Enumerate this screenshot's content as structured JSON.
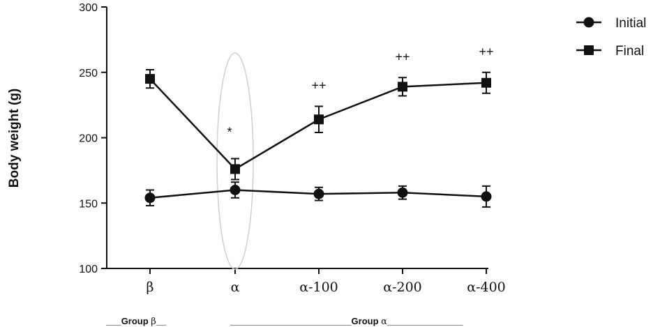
{
  "chart_data": {
    "type": "line",
    "xlabel": "",
    "ylabel": "Body weight (g)",
    "ylim": [
      100,
      300
    ],
    "y_ticks": [
      100,
      150,
      200,
      250,
      300
    ],
    "categories": [
      "β",
      "α",
      "α-100",
      "α-200",
      "α-400"
    ],
    "legend_position": "top-right",
    "grid": false,
    "series": [
      {
        "name": "Initial",
        "marker": "circle",
        "values": [
          154,
          160,
          157,
          158,
          155
        ],
        "errors": [
          6,
          6,
          5,
          5,
          8
        ]
      },
      {
        "name": "Final",
        "marker": "square",
        "values": [
          245,
          176,
          214,
          239,
          242
        ],
        "errors": [
          7,
          8,
          10,
          7,
          8
        ]
      }
    ],
    "annotations": [
      {
        "category": "α",
        "text": "*"
      },
      {
        "category": "α-100",
        "text": "++"
      },
      {
        "category": "α-200",
        "text": "++"
      },
      {
        "category": "α-400",
        "text": "++"
      }
    ],
    "highlighted_category": "α",
    "groups": [
      {
        "prefix": "___Group ",
        "greek": "β",
        "suffix": "__"
      },
      {
        "prefix": "________________________Group ",
        "greek": "α",
        "suffix": "_______________"
      }
    ]
  }
}
